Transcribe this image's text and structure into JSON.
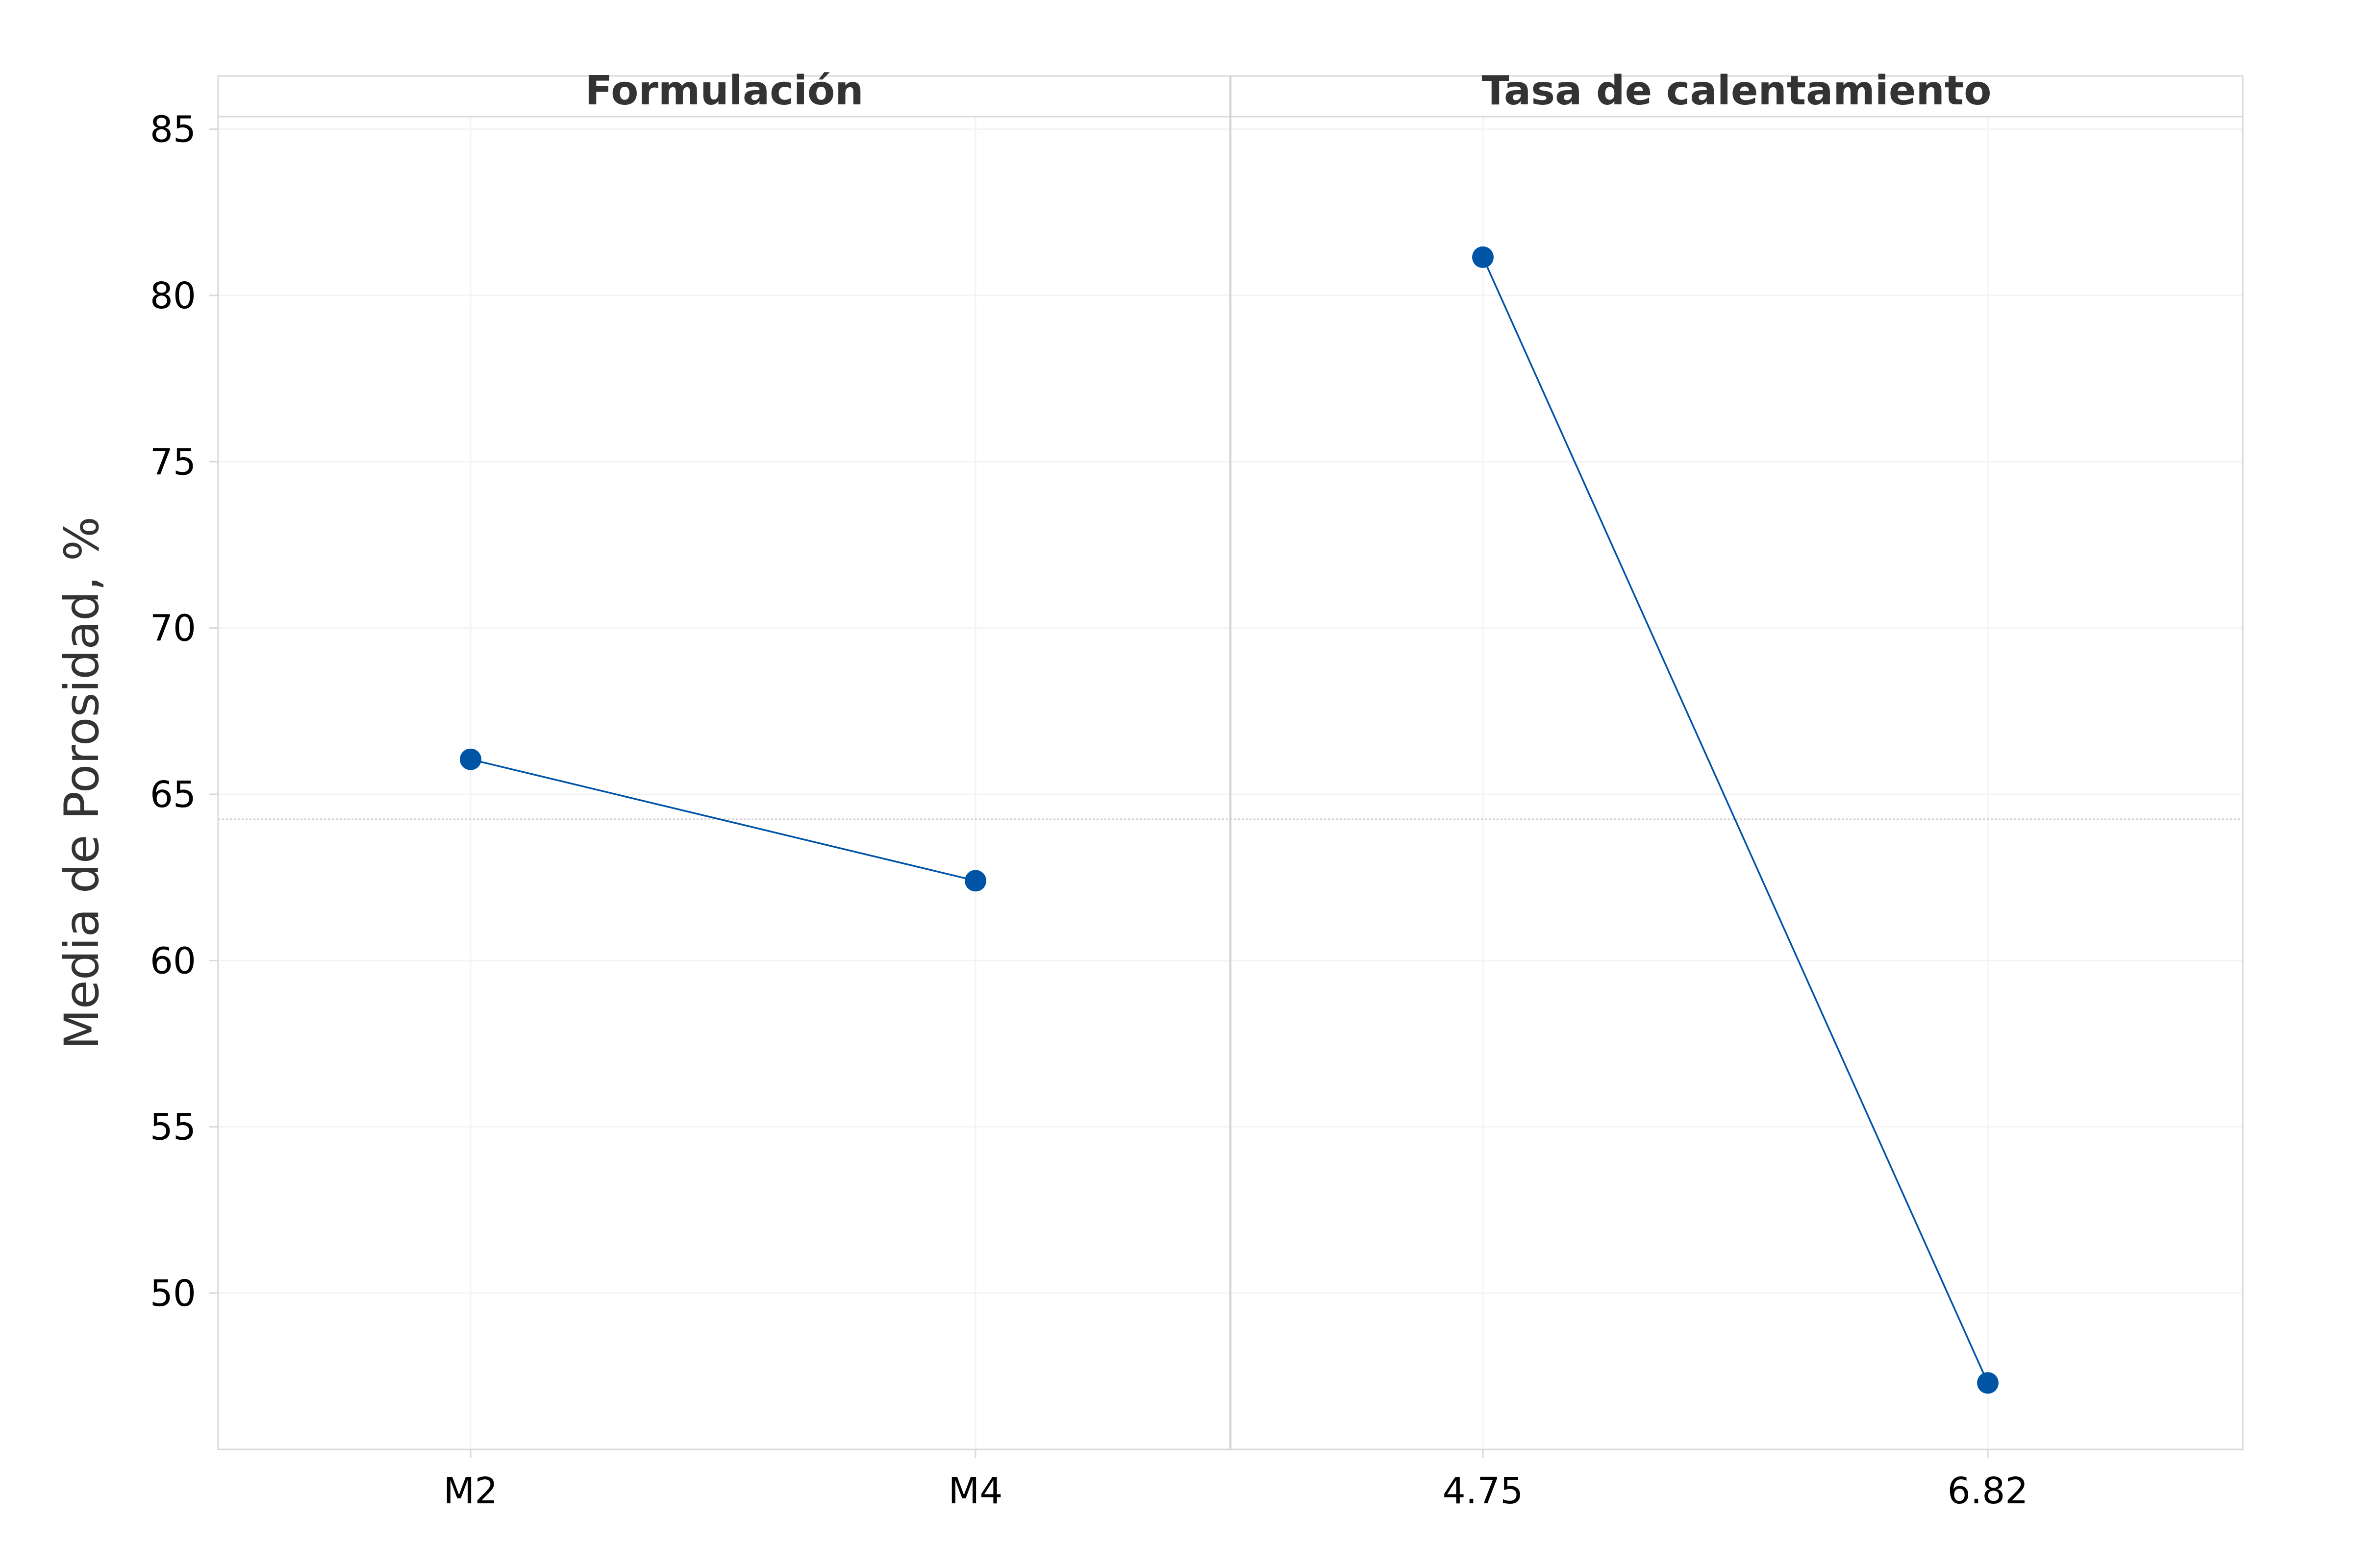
{
  "chart_data": {
    "type": "line",
    "ylabel": "Media de Porosidad, %",
    "ylim": [
      45.3,
      86.6
    ],
    "yticks": [
      50,
      55,
      60,
      65,
      70,
      75,
      80,
      85
    ],
    "grid": true,
    "overall_mean": 64.25,
    "series_color": "#0054A6",
    "panels": [
      {
        "title": "Formulación",
        "categories": [
          "M2",
          "M4"
        ],
        "values": [
          66.05,
          62.4
        ]
      },
      {
        "title": "Tasa de calentamiento",
        "categories": [
          "4.75",
          "6.82"
        ],
        "values": [
          81.15,
          47.3
        ]
      }
    ]
  }
}
